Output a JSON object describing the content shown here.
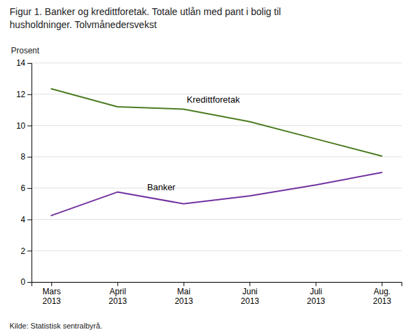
{
  "chart_data": {
    "type": "line",
    "title": "Figur 1. Banker og kredittforetak. Totale utlån med pant i bolig til\nhusholdninger. Tolvmånedersvekst",
    "y_label": "Prosent",
    "source": "Kilde: Statistisk sentralbyrå.",
    "categories": [
      "Mars\n2013",
      "April\n2013",
      "Mai\n2013",
      "Juni\n2013",
      "Juli\n2013",
      "Aug.\n2013"
    ],
    "series": [
      {
        "name": "Kredittforetak",
        "color": "#4a7a1e",
        "values": [
          12.35,
          11.2,
          11.05,
          10.25,
          9.15,
          8.05
        ]
      },
      {
        "name": "Banker",
        "color": "#7030a0",
        "values": [
          4.25,
          5.75,
          5.0,
          5.5,
          6.2,
          7.0
        ]
      }
    ],
    "ylim": [
      0,
      14
    ],
    "yticks": [
      0,
      2,
      4,
      6,
      8,
      10,
      12,
      14
    ],
    "grid": true
  }
}
